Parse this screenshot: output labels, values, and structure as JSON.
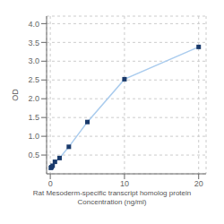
{
  "chart_data": {
    "type": "line",
    "xlabel": "Rat Mesoderm-specific transcript homolog protein\nConcentration (ng/ml)",
    "ylabel": "OD",
    "x": [
      0.078,
      0.156,
      0.313,
      0.625,
      1.25,
      2.5,
      5,
      10,
      20
    ],
    "values": [
      0.158,
      0.178,
      0.215,
      0.32,
      0.42,
      0.72,
      1.38,
      2.52,
      3.38
    ],
    "color": "#aaccee",
    "colors": [
      "#1a3a6b",
      "#1a3a6b",
      "#1a3a6b",
      "#1a3a6b",
      "#1a3a6b",
      "#1a3a6b",
      "#1a3a6b",
      "#1a3a6b",
      "#1a3a6b"
    ],
    "marker": "square",
    "xlim": [
      -0.5,
      21
    ],
    "ylim": [
      0.0,
      4.2
    ],
    "xticks": [
      0,
      10,
      20
    ],
    "yticks": [
      0.5,
      {
        "value": 1.0,
        "label": "1.0"
      },
      1.5,
      {
        "value": 2.0,
        "label": "2.0"
      },
      2.5,
      {
        "value": 3.0,
        "label": "3.0"
      },
      3.5,
      {
        "value": 4.0,
        "label": "4.0"
      }
    ],
    "grid": true
  }
}
